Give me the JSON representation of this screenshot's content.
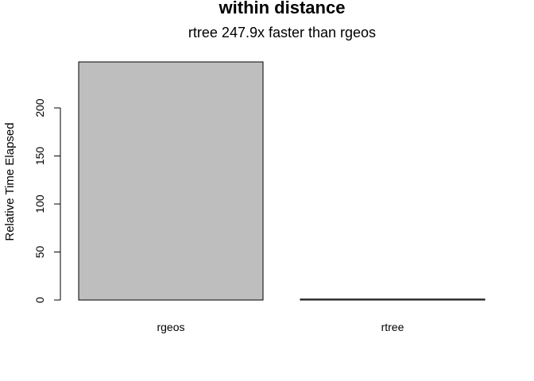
{
  "chart_data": {
    "type": "bar",
    "title": "within distance",
    "subtitle": "rtree 247.9x faster than rgeos",
    "ylabel": "Relative Time Elapsed",
    "xlabel": "",
    "categories": [
      "rgeos",
      "rtree"
    ],
    "values": [
      247.9,
      1
    ],
    "ylim": [
      0,
      247.9
    ],
    "yticks": [
      0,
      50,
      100,
      150,
      200
    ],
    "ytick_labels": [
      "0",
      "50",
      "100",
      "150",
      "200"
    ],
    "grid": false,
    "legend": "none",
    "bar_color": "#bebebe",
    "border_color": "#000000"
  }
}
